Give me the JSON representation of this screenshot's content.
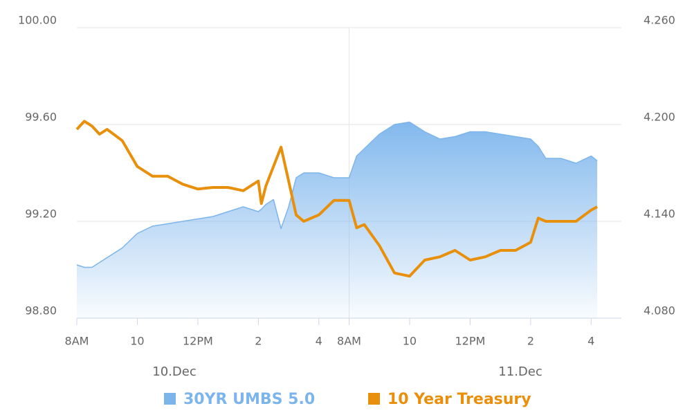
{
  "chart_data": {
    "type": "line",
    "x": [
      0,
      0.25,
      0.5,
      0.75,
      1,
      1.5,
      2,
      2.5,
      3,
      3.5,
      4,
      4.5,
      5,
      5.5,
      6,
      6.1,
      6.25,
      6.5,
      6.75,
      7,
      7.25,
      7.5,
      8,
      8.5,
      9,
      9.25,
      9.5,
      10,
      10.5,
      11,
      11.5,
      12,
      12.5,
      13,
      13.5,
      14,
      14.5,
      15,
      15.25,
      15.5,
      16,
      16.5,
      17,
      17.2
    ],
    "xlim": [
      0,
      18
    ],
    "xticks": [
      {
        "value": 0,
        "label": "8AM"
      },
      {
        "value": 2,
        "label": "10"
      },
      {
        "value": 4,
        "label": "12PM"
      },
      {
        "value": 6,
        "label": "2"
      },
      {
        "value": 8,
        "label": "4"
      },
      {
        "value": 9,
        "label": "8AM"
      },
      {
        "value": 11,
        "label": "10"
      },
      {
        "value": 13,
        "label": "12PM"
      },
      {
        "value": 15,
        "label": "2"
      },
      {
        "value": 17,
        "label": "4"
      }
    ],
    "day_labels": [
      "10.Dec",
      "11.Dec"
    ],
    "ylim": [
      98.8,
      100
    ],
    "yticks": [
      {
        "value": 98.8,
        "label": "98.80"
      },
      {
        "value": 99.2,
        "label": "99.20"
      },
      {
        "value": 99.6,
        "label": "99.60"
      },
      {
        "value": 100,
        "label": "100.00"
      }
    ],
    "y2lim": [
      4.08,
      4.26
    ],
    "y2ticks": [
      {
        "value": 4.08,
        "label": "4.080"
      },
      {
        "value": 4.14,
        "label": "4.140"
      },
      {
        "value": 4.2,
        "label": "4.200"
      },
      {
        "value": 4.26,
        "label": "4.260"
      }
    ],
    "grid": true,
    "series": [
      {
        "name": "30YR UMBS 5.0",
        "color": "#7cb5ec",
        "area": true,
        "values": [
          99.02,
          99.01,
          99.01,
          99.03,
          99.05,
          99.09,
          99.15,
          99.18,
          99.19,
          99.2,
          99.21,
          99.22,
          99.24,
          99.26,
          99.24,
          99.25,
          99.27,
          99.29,
          99.17,
          99.26,
          99.38,
          99.4,
          99.4,
          99.38,
          99.38,
          99.47,
          99.5,
          99.56,
          99.6,
          99.61,
          99.57,
          99.54,
          99.55,
          99.57,
          99.57,
          99.56,
          99.55,
          99.54,
          99.51,
          99.46,
          99.46,
          99.44,
          99.47,
          99.45
        ]
      },
      {
        "name": "10 Year Treasury",
        "color": "#e8900c",
        "axis": "y2",
        "values": [
          4.197,
          4.202,
          4.199,
          4.194,
          4.197,
          4.19,
          4.174,
          4.168,
          4.168,
          4.163,
          4.16,
          4.161,
          4.161,
          4.159,
          4.165,
          4.151,
          4.162,
          4.174,
          4.186,
          4.165,
          4.144,
          4.14,
          4.144,
          4.153,
          4.153,
          4.136,
          4.138,
          4.125,
          4.108,
          4.106,
          4.116,
          4.118,
          4.122,
          4.116,
          4.118,
          4.122,
          4.122,
          4.127,
          4.142,
          4.14,
          4.14,
          4.14,
          4.147,
          4.149
        ]
      }
    ]
  }
}
